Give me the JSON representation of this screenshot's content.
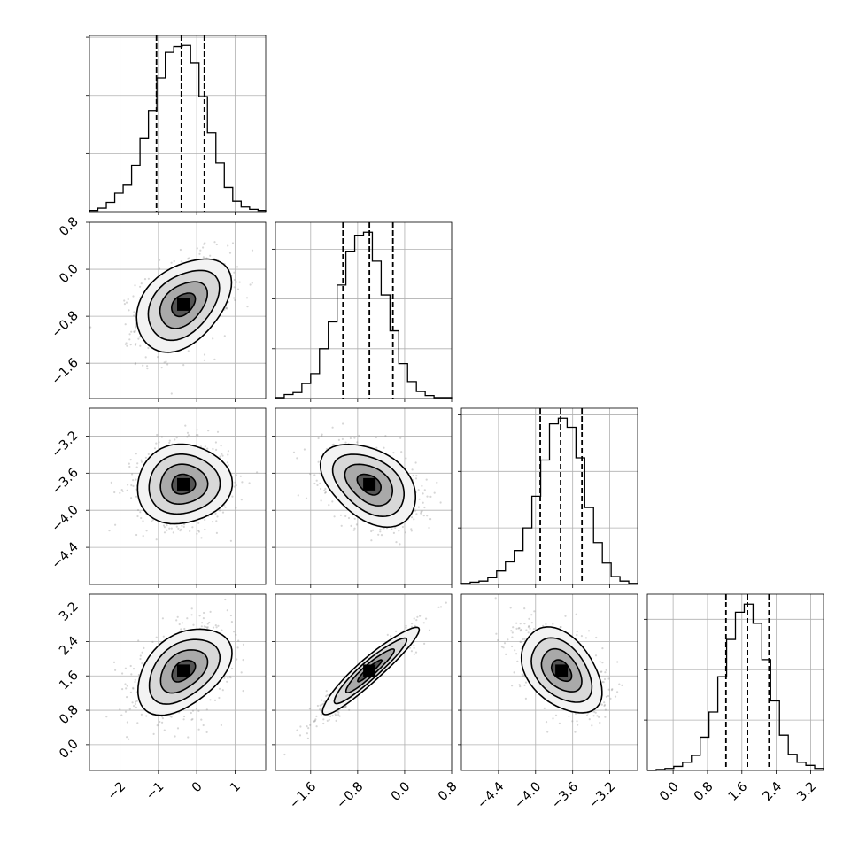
{
  "chart_data": {
    "type": "corner",
    "parameters": 4,
    "grid": true,
    "contour_levels": 4,
    "quantiles": [
      0.16,
      0.5,
      0.84
    ],
    "axes": [
      {
        "range": [
          -2.8,
          1.8
        ],
        "ticks": [
          -2,
          -1,
          0,
          1
        ],
        "tick_labels": [
          "−2",
          "−1",
          "0",
          "1"
        ]
      },
      {
        "range": [
          -2.2,
          0.8
        ],
        "ticks": [
          -1.6,
          -0.8,
          0.0,
          0.8
        ],
        "tick_labels": [
          "−1.6",
          "−0.8",
          "0.0",
          "0.8"
        ]
      },
      {
        "range": [
          -4.8,
          -2.9
        ],
        "ticks": [
          -4.4,
          -4.0,
          -3.6,
          -3.2
        ],
        "tick_labels": [
          "−4.4",
          "−4.0",
          "−3.6",
          "−3.2"
        ]
      },
      {
        "range": [
          -0.6,
          3.5
        ],
        "ticks": [
          0.0,
          0.8,
          1.6,
          2.4,
          3.2
        ],
        "tick_labels": [
          "0.0",
          "0.8",
          "1.6",
          "2.4",
          "3.2"
        ]
      }
    ],
    "marginals": [
      {
        "param": 0,
        "quantile_values": [
          -1.05,
          -0.4,
          0.2
        ],
        "bin_edges": [
          -2.8,
          -2.58,
          -2.36,
          -2.14,
          -1.92,
          -1.7,
          -1.48,
          -1.26,
          -1.04,
          -0.82,
          -0.6,
          -0.38,
          -0.16,
          0.06,
          0.28,
          0.5,
          0.72,
          0.94,
          1.16,
          1.38,
          1.6,
          1.8
        ],
        "counts": [
          1,
          3,
          8,
          16,
          23,
          40,
          63,
          87,
          115,
          137,
          142,
          143,
          128,
          99,
          68,
          42,
          21,
          9,
          4,
          2,
          1
        ]
      },
      {
        "param": 1,
        "quantile_values": [
          -1.05,
          -0.6,
          -0.2
        ],
        "bin_edges": [
          -2.2,
          -2.05,
          -1.9,
          -1.75,
          -1.6,
          -1.45,
          -1.3,
          -1.15,
          -1.0,
          -0.85,
          -0.7,
          -0.55,
          -0.4,
          -0.25,
          -0.1,
          0.05,
          0.2,
          0.35,
          0.5,
          0.65,
          0.8
        ],
        "counts": [
          1,
          4,
          6,
          15,
          25,
          50,
          77,
          114,
          148,
          164,
          167,
          138,
          104,
          68,
          35,
          17,
          7,
          3,
          1,
          1
        ]
      },
      {
        "param": 2,
        "quantile_values": [
          -3.95,
          -3.73,
          -3.5
        ],
        "bin_edges": [
          -4.8,
          -4.705,
          -4.61,
          -4.515,
          -4.42,
          -4.325,
          -4.23,
          -4.135,
          -4.04,
          -3.945,
          -3.85,
          -3.755,
          -3.66,
          -3.565,
          -3.47,
          -3.375,
          -3.28,
          -3.185,
          -3.09,
          -2.995,
          -2.9
        ],
        "counts": [
          1,
          2,
          3,
          6,
          12,
          20,
          30,
          50,
          78,
          110,
          142,
          147,
          139,
          112,
          68,
          37,
          19,
          7,
          3,
          1
        ]
      },
      {
        "param": 3,
        "quantile_values": [
          1.23,
          1.73,
          2.23
        ],
        "bin_edges": [
          -0.6,
          -0.395,
          -0.19,
          0.015,
          0.22,
          0.425,
          0.63,
          0.835,
          1.04,
          1.245,
          1.45,
          1.655,
          1.86,
          2.065,
          2.27,
          2.475,
          2.68,
          2.885,
          3.09,
          3.295,
          3.5
        ],
        "counts": [
          0,
          1,
          2,
          4,
          8,
          15,
          33,
          58,
          93,
          130,
          157,
          165,
          146,
          110,
          69,
          35,
          16,
          8,
          5,
          2
        ]
      }
    ],
    "pairs": [
      {
        "row": 1,
        "col": 0,
        "mean": [
          -0.35,
          -0.6
        ],
        "std": [
          0.6,
          0.4
        ],
        "corr": 0.35
      },
      {
        "row": 2,
        "col": 0,
        "mean": [
          -0.35,
          -3.72
        ],
        "std": [
          0.6,
          0.22
        ],
        "corr": 0.05
      },
      {
        "row": 2,
        "col": 1,
        "mean": [
          -0.6,
          -3.72
        ],
        "std": [
          0.4,
          0.22
        ],
        "corr": -0.35
      },
      {
        "row": 3,
        "col": 0,
        "mean": [
          -0.35,
          1.72
        ],
        "std": [
          0.6,
          0.5
        ],
        "corr": 0.38
      },
      {
        "row": 3,
        "col": 1,
        "mean": [
          -0.6,
          1.72
        ],
        "std": [
          0.4,
          0.5
        ],
        "corr": 0.93
      },
      {
        "row": 3,
        "col": 2,
        "mean": [
          -3.72,
          1.72
        ],
        "std": [
          0.22,
          0.5
        ],
        "corr": -0.45
      }
    ]
  }
}
